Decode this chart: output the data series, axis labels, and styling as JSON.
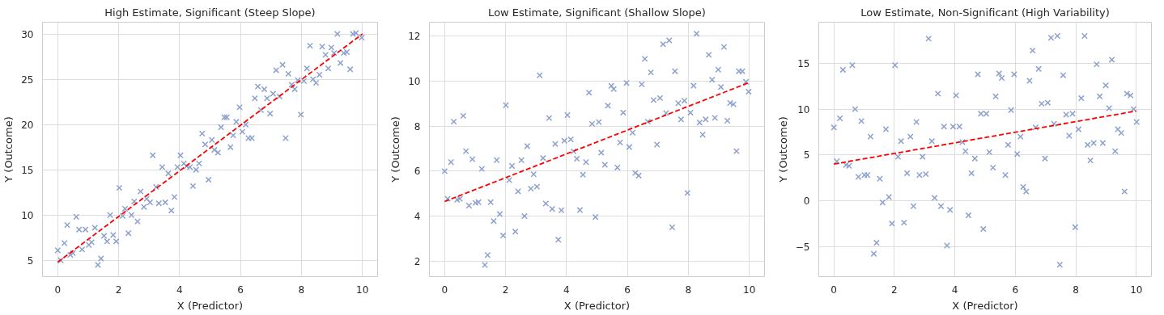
{
  "chart_data": [
    {
      "type": "scatter",
      "title": "High Estimate, Significant (Steep Slope)",
      "xlabel": "X (Predictor)",
      "ylabel": "Y (Outcome)",
      "xlim": [
        -0.5,
        10.5
      ],
      "ylim": [
        3.2,
        31.3
      ],
      "xticks": [
        0,
        2,
        4,
        6,
        8,
        10
      ],
      "yticks": [
        5,
        10,
        15,
        20,
        25,
        30
      ],
      "grid": true,
      "marker": "cross",
      "series": [
        {
          "color": "#8da2cd",
          "x": [
            0,
            0.1,
            0.22,
            0.31,
            0.41,
            0.5,
            0.61,
            0.7,
            0.8,
            0.91,
            1.02,
            1.11,
            1.22,
            1.32,
            1.42,
            1.52,
            1.62,
            1.72,
            1.82,
            1.92,
            2.02,
            2.13,
            2.21,
            2.32,
            2.42,
            2.51,
            2.62,
            2.72,
            2.83,
            2.92,
            3.03,
            3.12,
            3.23,
            3.32,
            3.43,
            3.53,
            3.63,
            3.73,
            3.83,
            3.93,
            4.03,
            4.14,
            4.23,
            4.34,
            4.44,
            4.54,
            4.64,
            4.74,
            4.84,
            4.95,
            5.06,
            5.14,
            5.26,
            5.36,
            5.47,
            5.55,
            5.67,
            5.76,
            5.86,
            5.97,
            6.06,
            6.17,
            6.26,
            6.37,
            6.47,
            6.57,
            6.67,
            6.78,
            6.87,
            6.97,
            7.07,
            7.17,
            7.28,
            7.38,
            7.48,
            7.57,
            7.68,
            7.78,
            7.88,
            7.98,
            8.08,
            8.18,
            8.28,
            8.38,
            8.48,
            8.59,
            8.68,
            8.79,
            8.88,
            8.98,
            9.07,
            9.18,
            9.28,
            9.39,
            9.49,
            9.6,
            9.69,
            9.79,
            9.98
          ],
          "values": [
            6.1,
            5.0,
            6.9,
            8.9,
            5.6,
            5.8,
            9.8,
            8.4,
            6.2,
            8.4,
            6.7,
            7.0,
            8.6,
            4.5,
            5.2,
            7.7,
            7.1,
            10.0,
            7.8,
            7.1,
            13.0,
            9.9,
            10.7,
            8.0,
            10.0,
            11.5,
            9.3,
            12.6,
            10.9,
            11.8,
            11.4,
            16.6,
            13.1,
            11.3,
            15.3,
            11.4,
            14.6,
            10.5,
            12.0,
            15.3,
            16.6,
            15.7,
            15.4,
            15.3,
            13.2,
            15.0,
            15.7,
            19.0,
            17.8,
            13.9,
            18.3,
            17.2,
            16.9,
            19.7,
            20.8,
            20.8,
            17.5,
            18.8,
            20.3,
            21.9,
            19.2,
            20.0,
            18.5,
            18.5,
            22.9,
            24.2,
            21.6,
            23.9,
            22.9,
            21.2,
            23.4,
            26.0,
            23.1,
            26.6,
            18.5,
            25.6,
            24.4,
            23.9,
            24.9,
            21.1,
            24.8,
            26.2,
            28.7,
            25.0,
            24.6,
            25.5,
            28.6,
            27.7,
            26.2,
            28.5,
            27.9,
            30.0,
            26.8,
            27.9,
            28.0,
            26.1,
            30.0,
            30.1,
            29.6
          ]
        },
        {
          "type": "line",
          "marker": "none",
          "color": "#ff0000",
          "line_style": "dashed",
          "x": [
            0,
            10
          ],
          "values": [
            4.8,
            30.0
          ]
        }
      ]
    },
    {
      "type": "scatter",
      "title": "Low Estimate, Significant (Shallow Slope)",
      "xlabel": "X (Predictor)",
      "ylabel": "Y (Outcome)",
      "xlim": [
        -0.5,
        10.5
      ],
      "ylim": [
        1.31,
        12.62
      ],
      "xticks": [
        0,
        2,
        4,
        6,
        8,
        10
      ],
      "yticks": [
        2,
        4,
        6,
        8,
        10,
        12
      ],
      "grid": true,
      "marker": "cross",
      "series": [
        {
          "color": "#8da2cd",
          "x": [
            0,
            0.1,
            0.21,
            0.3,
            0.41,
            0.5,
            0.61,
            0.7,
            0.8,
            0.91,
            1.01,
            1.11,
            1.22,
            1.32,
            1.41,
            1.51,
            1.61,
            1.71,
            1.81,
            1.92,
            2.01,
            2.12,
            2.21,
            2.32,
            2.41,
            2.52,
            2.62,
            2.71,
            2.83,
            2.92,
            3.03,
            3.12,
            3.23,
            3.32,
            3.43,
            3.53,
            3.63,
            3.73,
            3.83,
            3.93,
            4.03,
            4.14,
            4.23,
            4.34,
            4.44,
            4.54,
            4.64,
            4.74,
            4.84,
            4.95,
            5.06,
            5.14,
            5.26,
            5.36,
            5.47,
            5.55,
            5.67,
            5.76,
            5.86,
            5.97,
            6.06,
            6.17,
            6.26,
            6.37,
            6.47,
            6.57,
            6.67,
            6.77,
            6.86,
            6.97,
            7.07,
            7.17,
            7.27,
            7.37,
            7.47,
            7.56,
            7.67,
            7.76,
            7.87,
            7.97,
            8.07,
            8.17,
            8.27,
            8.37,
            8.47,
            8.57,
            8.67,
            8.78,
            8.87,
            8.98,
            9.07,
            9.17,
            9.28,
            9.37,
            9.48,
            9.58,
            9.66,
            9.77,
            9.89,
            9.98
          ],
          "values": [
            6.0,
            4.77,
            6.4,
            8.2,
            4.73,
            4.77,
            8.46,
            6.89,
            4.47,
            6.53,
            4.59,
            4.62,
            6.1,
            1.83,
            2.27,
            4.62,
            3.78,
            6.49,
            4.09,
            3.14,
            8.93,
            5.6,
            6.23,
            3.31,
            5.1,
            6.49,
            4.0,
            7.11,
            5.22,
            5.86,
            5.31,
            10.26,
            6.58,
            4.56,
            8.36,
            4.32,
            7.21,
            2.95,
            4.26,
            7.35,
            8.49,
            7.41,
            6.88,
            6.55,
            4.27,
            5.84,
            6.4,
            9.49,
            8.1,
            3.96,
            8.18,
            6.82,
            6.28,
            8.91,
            9.79,
            9.65,
            6.16,
            7.27,
            8.6,
            9.92,
            7.07,
            7.71,
            5.92,
            5.8,
            9.86,
            10.99,
            8.2,
            10.39,
            9.16,
            7.18,
            9.25,
            11.64,
            8.58,
            11.81,
            3.5,
            10.44,
            9.02,
            8.3,
            9.13,
            5.03,
            8.6,
            9.8,
            12.11,
            8.16,
            7.62,
            8.3,
            11.17,
            10.06,
            8.37,
            10.51,
            9.74,
            11.52,
            8.24,
            9.03,
            8.97,
            6.89,
            10.44,
            10.44,
            9.97,
            9.53
          ]
        },
        {
          "type": "line",
          "marker": "none",
          "color": "#ff0000",
          "line_style": "dashed",
          "x": [
            0,
            10
          ],
          "values": [
            4.65,
            9.94
          ]
        }
      ]
    },
    {
      "type": "scatter",
      "title": "Low Estimate, Non-Significant (High Variability)",
      "xlabel": "X (Predictor)",
      "ylabel": "Y (Outcome)",
      "xlim": [
        -0.5,
        10.5
      ],
      "ylim": [
        -8.3,
        19.5
      ],
      "xticks": [
        0,
        2,
        4,
        6,
        8,
        10
      ],
      "yticks": [
        {
          "value": -5,
          "label": "−5"
        },
        0,
        5,
        10,
        15
      ],
      "grid": true,
      "marker": "cross",
      "series": [
        {
          "color": "#8da2cd",
          "x": [
            0,
            0.1,
            0.2,
            0.3,
            0.4,
            0.5,
            0.61,
            0.7,
            0.81,
            0.91,
            1.01,
            1.11,
            1.21,
            1.32,
            1.41,
            1.52,
            1.61,
            1.72,
            1.82,
            1.92,
            2.02,
            2.12,
            2.22,
            2.32,
            2.42,
            2.53,
            2.63,
            2.73,
            2.83,
            2.93,
            3.04,
            3.13,
            3.24,
            3.33,
            3.44,
            3.54,
            3.64,
            3.74,
            3.84,
            3.94,
            4.04,
            4.15,
            4.25,
            4.35,
            4.45,
            4.55,
            4.66,
            4.76,
            4.86,
            4.94,
            5.04,
            5.14,
            5.26,
            5.35,
            5.46,
            5.55,
            5.67,
            5.76,
            5.86,
            5.96,
            6.06,
            6.17,
            6.26,
            6.36,
            6.47,
            6.57,
            6.67,
            6.77,
            6.87,
            6.98,
            7.07,
            7.18,
            7.28,
            7.39,
            7.47,
            7.58,
            7.68,
            7.78,
            7.89,
            7.98,
            8.09,
            8.18,
            8.29,
            8.39,
            8.48,
            8.59,
            8.69,
            8.79,
            8.89,
            8.99,
            9.1,
            9.19,
            9.3,
            9.39,
            9.5,
            9.61,
            9.69,
            9.81,
            9.91,
            10.01
          ],
          "values": [
            8.0,
            4.3,
            9.0,
            14.3,
            3.9,
            3.8,
            14.8,
            10.0,
            2.6,
            8.7,
            2.8,
            2.8,
            7.0,
            -5.8,
            -4.6,
            2.4,
            -0.2,
            7.8,
            0.4,
            -2.5,
            14.8,
            4.8,
            6.5,
            -2.4,
            3.0,
            7.0,
            -0.6,
            8.6,
            2.8,
            4.8,
            2.9,
            17.7,
            6.5,
            0.3,
            11.7,
            -0.6,
            8.1,
            -4.9,
            -1.0,
            8.1,
            11.5,
            8.1,
            6.4,
            5.4,
            -1.6,
            3.0,
            4.6,
            13.8,
            9.5,
            -3.1,
            9.5,
            5.3,
            3.6,
            11.4,
            13.9,
            13.4,
            2.8,
            6.1,
            9.9,
            13.8,
            5.1,
            7.0,
            1.5,
            1.0,
            13.1,
            16.4,
            8.0,
            14.4,
            10.6,
            4.6,
            10.7,
            17.8,
            8.4,
            18.0,
            -7.0,
            13.7,
            9.4,
            7.1,
            9.5,
            -2.9,
            7.8,
            11.2,
            18.0,
            6.1,
            4.4,
            6.3,
            14.9,
            11.4,
            6.3,
            12.6,
            10.1,
            15.4,
            5.4,
            7.8,
            7.4,
            1.0,
            11.7,
            11.5,
            10.0,
            8.6
          ]
        },
        {
          "type": "line",
          "marker": "none",
          "color": "#ff0000",
          "line_style": "dashed",
          "x": [
            0,
            10
          ],
          "values": [
            4.0,
            9.8
          ]
        }
      ]
    }
  ]
}
